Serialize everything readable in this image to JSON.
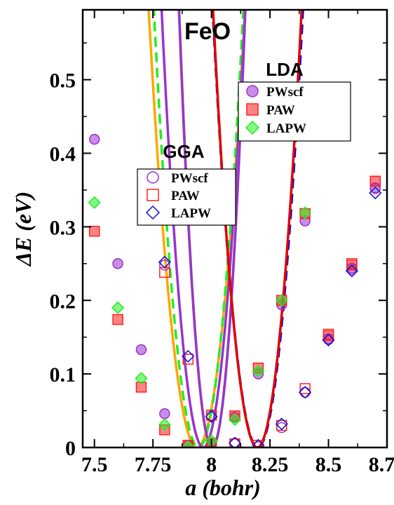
{
  "chart_data": {
    "type": "scatter",
    "title": "FeO",
    "xlabel": "a (bohr)",
    "ylabel": "ΔE (eV)",
    "xlim": [
      7.45,
      8.75
    ],
    "ylim": [
      0,
      0.595
    ],
    "x_ticks": [
      "7.5",
      "7.75",
      "8",
      "8.25",
      "8.5",
      "8.75"
    ],
    "x_tick_values": [
      7.5,
      7.75,
      8.0,
      8.25,
      8.5,
      8.75
    ],
    "y_ticks": [
      "0",
      "0.1",
      "0.2",
      "0.3",
      "0.4",
      "0.5"
    ],
    "y_tick_values": [
      0,
      0.1,
      0.2,
      0.3,
      0.4,
      0.5
    ],
    "grid": false,
    "colors": {
      "pwscf": "#9a32cd",
      "paw": "#ff2020",
      "lapw": "#22ee22",
      "lapw_gga": "#1010cc",
      "orange": "#ffa500",
      "red": "#e00000",
      "blue": "#0000e0"
    },
    "groups": [
      {
        "name": "LDA",
        "legend_position": "top-right",
        "series": [
          {
            "name": "PWscf",
            "marker": "circle-filled",
            "color": "#9a32cd",
            "x": [
              7.5,
              7.6,
              7.7,
              7.8,
              7.9,
              8.0,
              8.1,
              8.2,
              8.3,
              8.4,
              8.5,
              8.6,
              8.7
            ],
            "y": [
              0.419,
              0.25,
              0.133,
              0.046,
              0.003,
              0.005,
              0.041,
              0.1,
              0.194,
              0.308,
              0.148,
              0.244,
              0.353
            ]
          },
          {
            "name": "PAW",
            "marker": "square-filled",
            "color": "#ff2020",
            "x": [
              7.5,
              7.6,
              7.7,
              7.8,
              7.9,
              8.0,
              8.1,
              8.2,
              8.3,
              8.4,
              8.5,
              8.6,
              8.7
            ],
            "y": [
              0.294,
              0.174,
              0.082,
              0.024,
              0.003,
              0.006,
              0.043,
              0.108,
              0.2,
              0.318,
              0.152,
              0.248,
              0.362
            ]
          },
          {
            "name": "LAPW",
            "marker": "diamond-filled",
            "color": "#22ee22",
            "x": [
              7.5,
              7.6,
              7.7,
              7.8,
              7.9,
              8.0,
              8.1,
              8.2,
              8.3,
              8.4
            ],
            "y": [
              0.333,
              0.19,
              0.094,
              0.031,
              0.001,
              0.009,
              0.038,
              0.104,
              0.2,
              0.319
            ]
          }
        ]
      },
      {
        "name": "GGA",
        "legend_position": "center",
        "series": [
          {
            "name": "PWscf",
            "marker": "circle-open",
            "color": "#9a32cd",
            "x": [
              7.8,
              8.0,
              8.1,
              8.2,
              8.3,
              8.4,
              8.5,
              8.6,
              8.7
            ],
            "y": [
              0.248,
              0.043,
              0.006,
              0.001,
              0.027,
              0.075,
              0.147,
              0.242,
              0.352
            ]
          },
          {
            "name": "PAW",
            "marker": "square-open",
            "color": "#ff2020",
            "x": [
              7.8,
              7.9,
              8.0,
              8.1,
              8.2,
              8.3,
              8.4,
              8.5,
              8.6,
              8.7
            ],
            "y": [
              0.238,
              0.12,
              0.044,
              0.005,
              0.003,
              0.03,
              0.08,
              0.154,
              0.25,
              0.362
            ]
          },
          {
            "name": "LAPW",
            "marker": "diamond-open",
            "color": "#1010cc",
            "x": [
              7.8,
              7.9,
              8.0,
              8.1,
              8.2,
              8.3,
              8.4,
              8.5,
              8.6,
              8.7
            ],
            "y": [
              0.252,
              0.124,
              0.042,
              0.006,
              0.003,
              0.032,
              0.075,
              0.146,
              0.24,
              0.346
            ]
          }
        ]
      }
    ],
    "fit_curves": [
      {
        "group": "GGA",
        "color": "#ffa500",
        "style": "solid",
        "x0": 7.938,
        "c": 14.0
      },
      {
        "group": "GGA",
        "color": "#22ee22",
        "style": "dashed",
        "x0": 7.945,
        "c": 16.3
      },
      {
        "group": "GGA",
        "color": "#9a32cd",
        "style": "solid",
        "x0": 7.965,
        "c": 18.8
      },
      {
        "group": "LDA",
        "color": "#ffa500",
        "style": "solid",
        "x0": 8.003,
        "c": 30.0
      },
      {
        "group": "LDA",
        "color": "#22ee22",
        "style": "dashed",
        "x0": 8.003,
        "c": 30.0
      },
      {
        "group": "LDA",
        "color": "#9a32cd",
        "style": "solid",
        "x0": 8.003,
        "c": 29.6
      },
      {
        "group": "LDA",
        "color": "#0000e0",
        "style": "dashed",
        "x0": 8.198,
        "c": 16.0
      },
      {
        "group": "LDA",
        "color": "#e00000",
        "style": "solid",
        "x0": 8.196,
        "c": 16.6
      }
    ]
  }
}
